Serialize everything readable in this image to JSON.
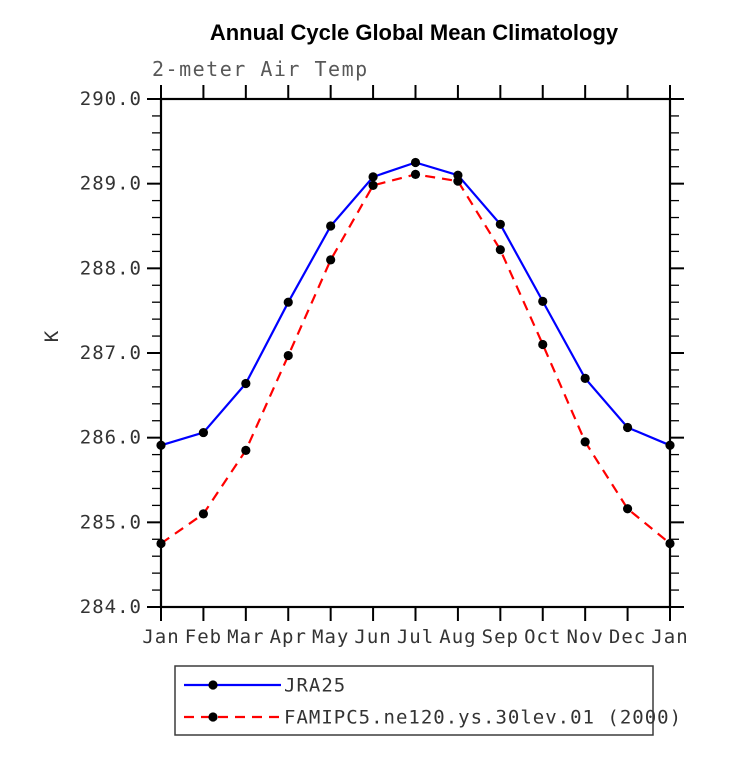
{
  "chart_data": {
    "type": "line",
    "title": "Annual Cycle Global Mean Climatology",
    "subtitle": "2-meter Air Temp",
    "ylabel": "K",
    "x_categories": [
      "Jan",
      "Feb",
      "Mar",
      "Apr",
      "May",
      "Jun",
      "Jul",
      "Aug",
      "Sep",
      "Oct",
      "Nov",
      "Dec",
      "Jan"
    ],
    "ylim": [
      284.0,
      290.0
    ],
    "y_major_step": 1.0,
    "y_minor_step": 0.2,
    "y_tick_decimals": 1,
    "grid": false,
    "legend_position": "below-chart",
    "background_color": "#ffffff",
    "axis_color": "#000000",
    "title_color": "#000000",
    "subtitle_color": "#585858",
    "tick_label_color": "#333333",
    "legend_text_color": "#333333",
    "legend_border_color": "#3c3c3c",
    "marker_color": "#000000",
    "series": [
      {
        "name": "JRA25",
        "color": "#0000ff",
        "line_style": "solid",
        "marker": "circle",
        "values": [
          285.91,
          286.06,
          286.64,
          287.6,
          288.5,
          289.08,
          289.25,
          289.1,
          288.52,
          287.61,
          286.7,
          286.12,
          285.91
        ]
      },
      {
        "name": "FAMIPC5.ne120.ys.30lev.01 (2000)",
        "color": "#ff0000",
        "line_style": "dashed",
        "marker": "circle",
        "values": [
          284.75,
          285.1,
          285.85,
          286.97,
          288.1,
          288.98,
          289.11,
          289.03,
          288.22,
          287.1,
          285.95,
          285.16,
          284.75
        ]
      }
    ]
  }
}
